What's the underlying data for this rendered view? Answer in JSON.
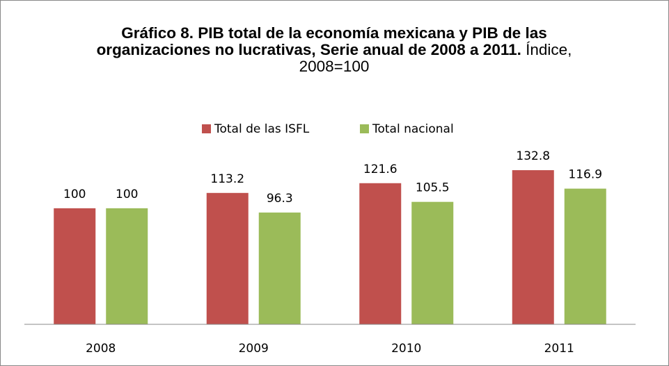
{
  "chart_data": {
    "type": "bar",
    "title": "Gráfico 8. PIB total de la economía mexicana y PIB de las organizaciones no lucrativas, Serie anual de 2008 a 2011.",
    "subtitle": "Índice, 2008=100",
    "categories": [
      "2008",
      "2009",
      "2010",
      "2011"
    ],
    "series": [
      {
        "name": "Total de las ISFL",
        "color": "#c0504d",
        "values": [
          100,
          113.2,
          121.6,
          132.8
        ]
      },
      {
        "name": "Total nacional",
        "color": "#9bbb59",
        "values": [
          100,
          96.3,
          105.5,
          116.9
        ]
      }
    ],
    "ylim": [
      0,
      140
    ]
  }
}
